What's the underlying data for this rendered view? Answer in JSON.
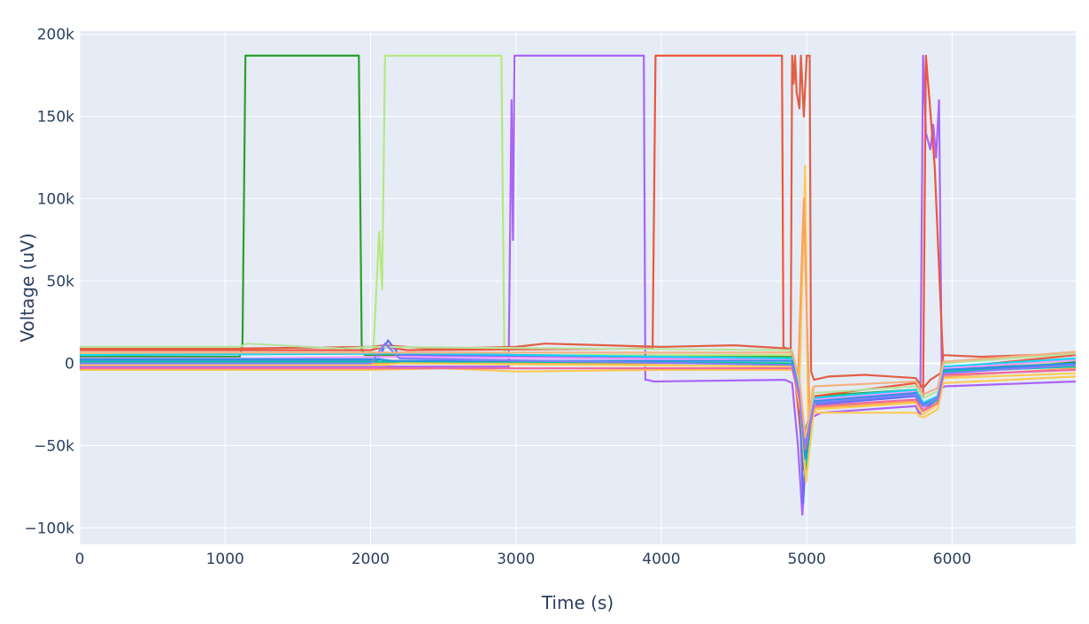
{
  "chart_data": {
    "type": "line",
    "title": "",
    "xlabel": "Time (s)",
    "ylabel": "Voltage (uV)",
    "xlim": [
      0,
      6850
    ],
    "ylim": [
      -110000,
      202000
    ],
    "x_ticks": [
      0,
      1000,
      2000,
      3000,
      4000,
      5000,
      6000
    ],
    "x_tick_labels": [
      "0",
      "1000",
      "2000",
      "3000",
      "4000",
      "5000",
      "6000"
    ],
    "y_ticks": [
      -100000,
      -50000,
      0,
      50000,
      100000,
      150000,
      200000
    ],
    "y_tick_labels": [
      "−100k",
      "−50k",
      "0",
      "50k",
      "100k",
      "150k",
      "200k"
    ],
    "grid": true,
    "legend": "none",
    "plot_bgcolor": "#e5ecf6",
    "series": [
      {
        "color": "#2ca02c",
        "x": [
          0,
          1100,
          1120,
          1140,
          1920,
          1940,
          1960,
          4900,
          4940,
          4980,
          5050,
          5750,
          5800,
          5900,
          5940,
          6850
        ],
        "y": [
          4000,
          4000,
          12000,
          187000,
          187000,
          8000,
          5000,
          4000,
          -10000,
          -45000,
          -20000,
          -16000,
          -25000,
          -22000,
          -4000,
          1000
        ]
      },
      {
        "color": "#b6e880",
        "x": [
          0,
          2000,
          2020,
          2060,
          2080,
          2100,
          2900,
          2920,
          2940,
          4900,
          4940,
          4980,
          5050,
          5750,
          5800,
          5900,
          5940,
          6850
        ],
        "y": [
          6000,
          6000,
          9000,
          80000,
          45000,
          187000,
          187000,
          8000,
          5000,
          5000,
          -8000,
          -55000,
          -22000,
          -18000,
          -28000,
          -24000,
          -6000,
          2000
        ]
      },
      {
        "color": "#ab63fa",
        "x": [
          0,
          2950,
          2970,
          2980,
          2990,
          3010,
          3880,
          3890,
          3900,
          3950,
          4850,
          4900,
          4940,
          4970,
          5000,
          5030,
          5100,
          5750,
          5780,
          5800,
          5820,
          5850,
          5870,
          5890,
          5910,
          5930,
          5950,
          6850
        ],
        "y": [
          -2000,
          -2000,
          160000,
          75000,
          187000,
          187000,
          187000,
          -10000,
          -10000,
          -11000,
          -10000,
          -12000,
          -50000,
          -92000,
          -50000,
          -33000,
          -30000,
          -26000,
          -32000,
          187000,
          140000,
          130000,
          145000,
          125000,
          160000,
          -15000,
          -14000,
          -11000
        ]
      },
      {
        "color": "#ef553b",
        "x": [
          0,
          2000,
          2100,
          2250,
          3900,
          3940,
          3960,
          4830,
          4840,
          4860,
          4900,
          4950,
          4980,
          5050,
          5750,
          5800,
          5820,
          5880,
          5940,
          6850
        ],
        "y": [
          8000,
          8000,
          10000,
          8000,
          9000,
          9000,
          187000,
          187000,
          10000,
          9000,
          7000,
          -35000,
          -65000,
          -20000,
          -12000,
          -20000,
          187000,
          120000,
          -3000,
          5000
        ]
      },
      {
        "color": "#e15f45",
        "x": [
          0,
          1000,
          2000,
          2100,
          2400,
          3000,
          3200,
          4000,
          4500,
          4880,
          4890,
          4900,
          4910,
          4920,
          4930,
          4950,
          4960,
          4980,
          5000,
          5010,
          5020,
          5030,
          5050,
          5150,
          5400,
          5750,
          5800,
          5850,
          5920,
          5940,
          6200,
          6850
        ],
        "y": [
          9000,
          9000,
          10000,
          11000,
          9000,
          10000,
          12000,
          10000,
          11000,
          9000,
          8000,
          187000,
          170000,
          187000,
          165000,
          155000,
          187000,
          150000,
          187000,
          187000,
          187000,
          -5000,
          -10000,
          -8000,
          -7000,
          -9000,
          -15000,
          -10000,
          -6000,
          5000,
          4000,
          6000
        ]
      },
      {
        "color": "#636efa",
        "x": [
          0,
          2050,
          2120,
          2200,
          4900,
          4950,
          4975,
          5000,
          5050,
          5750,
          5800,
          5900,
          5940,
          6850
        ],
        "y": [
          2000,
          2000,
          14000,
          5000,
          2000,
          -20000,
          -85000,
          -40000,
          -25000,
          -20000,
          -28000,
          -22000,
          -5000,
          0
        ]
      },
      {
        "color": "#feca52",
        "x": [
          0,
          1000,
          2000,
          2500,
          3000,
          4000,
          4900,
          4950,
          4990,
          5010,
          5040,
          5060,
          5750,
          5800,
          5900,
          5940,
          6850
        ],
        "y": [
          -4000,
          -4000,
          -4000,
          -3000,
          -5000,
          -4000,
          -4000,
          -15000,
          120000,
          -50000,
          -15000,
          -30000,
          -30000,
          -33000,
          -28000,
          -12000,
          -8000
        ]
      },
      {
        "color": "#ffa15a",
        "x": [
          0,
          4900,
          4940,
          4980,
          5000,
          5020,
          5060,
          5750,
          5800,
          5900,
          5940,
          6850
        ],
        "y": [
          0,
          0,
          -10000,
          100000,
          30000,
          -30000,
          -27000,
          -23000,
          -28000,
          -25000,
          -8000,
          -3000
        ]
      },
      {
        "color": "#ff97ff",
        "x": [
          0,
          1200,
          2200,
          4900,
          4950,
          4990,
          5050,
          5750,
          5800,
          5900,
          5940,
          6850
        ],
        "y": [
          3000,
          3000,
          4000,
          2000,
          -20000,
          -60000,
          -22000,
          -17000,
          -27000,
          -20000,
          -3000,
          2000
        ]
      },
      {
        "color": "#19d3f3",
        "x": [
          0,
          2300,
          4900,
          4950,
          4985,
          5050,
          5750,
          5800,
          5900,
          5940,
          6850
        ],
        "y": [
          5000,
          6000,
          3000,
          -18000,
          -62000,
          -21000,
          -16000,
          -24000,
          -20000,
          -2000,
          3000
        ]
      },
      {
        "color": "#00cc96",
        "x": [
          0,
          3000,
          4900,
          4955,
          4990,
          5050,
          5750,
          5800,
          5900,
          5940,
          6850
        ],
        "y": [
          1000,
          1000,
          0,
          -25000,
          -68000,
          -24000,
          -19000,
          -26000,
          -22000,
          -5000,
          -2000
        ]
      },
      {
        "color": "#fecb52",
        "x": [
          0,
          2100,
          2200,
          4900,
          4960,
          4995,
          5050,
          5750,
          5800,
          5900,
          5940,
          6850
        ],
        "y": [
          -1000,
          -1000,
          0,
          -2000,
          -30000,
          -72000,
          -28000,
          -24000,
          -31000,
          -25000,
          -9000,
          -6000
        ]
      },
      {
        "color": "#2e91e5",
        "x": [
          0,
          2050,
          2150,
          4900,
          4950,
          4990,
          5050,
          5750,
          5800,
          5900,
          5940,
          6850
        ],
        "y": [
          2500,
          2500,
          1500,
          1500,
          -19000,
          -58000,
          -23000,
          -18000,
          -25000,
          -21000,
          -4000,
          0
        ]
      },
      {
        "color": "#b8e3a0",
        "x": [
          0,
          1100,
          1150,
          1800,
          2000,
          4900,
          4950,
          4985,
          5050,
          5750,
          5800,
          5900,
          5940,
          6850
        ],
        "y": [
          10000,
          10000,
          12000,
          9000,
          10000,
          8000,
          -12000,
          -48000,
          -18000,
          -14000,
          -21000,
          -17000,
          0,
          6000
        ]
      },
      {
        "color": "#ef6aa0",
        "x": [
          0,
          4900,
          4950,
          4990,
          5050,
          5750,
          5800,
          5900,
          5940,
          6850
        ],
        "y": [
          -3000,
          -3000,
          -22000,
          -52000,
          -26000,
          -22000,
          -29000,
          -24000,
          -7000,
          -4000
        ]
      },
      {
        "color": "#7f7fff",
        "x": [
          0,
          2000,
          2100,
          2200,
          4900,
          4950,
          4990,
          5050,
          5750,
          5800,
          5900,
          5940,
          6850
        ],
        "y": [
          0,
          0,
          12000,
          3000,
          -1000,
          -18000,
          -50000,
          -24000,
          -19000,
          -26000,
          -21000,
          -6000,
          -1000
        ]
      },
      {
        "color": "#f4b183",
        "x": [
          0,
          4900,
          4950,
          4990,
          5050,
          5750,
          5800,
          5900,
          5940,
          6850
        ],
        "y": [
          6500,
          6500,
          -10000,
          -45000,
          -14000,
          -11000,
          -19000,
          -15000,
          1000,
          7000
        ]
      }
    ]
  }
}
